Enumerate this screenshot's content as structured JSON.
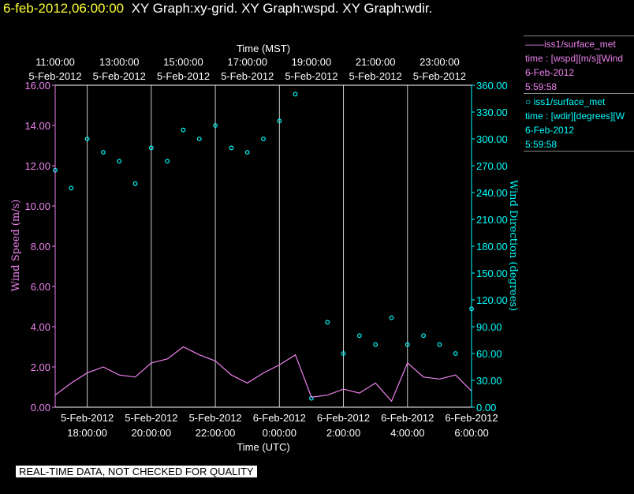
{
  "header": {
    "timestamp": "6-feb-2012,06:00:00",
    "titles": "XY Graph:xy-grid.  XY Graph:wspd.  XY Graph:wdir."
  },
  "legend": {
    "wspd": {
      "name": "——iss1/surface_met",
      "field": "time : [wspd][m/s][Wind",
      "date": "6-Feb-2012",
      "time": "5:59:58"
    },
    "wdir": {
      "name": "○ iss1/surface_met",
      "field": "time : [wdir][degrees][W",
      "date": "6-Feb-2012",
      "time": "5:59:58"
    }
  },
  "footer": {
    "text": "REAL-TIME DATA, NOT CHECKED FOR QUALITY"
  },
  "colors": {
    "wspd": "#ee82ee",
    "wdir": "#00ffff",
    "grid": "#cccccc",
    "text": "#ffffff"
  },
  "chart_data": {
    "type": "scatter",
    "xlabel_top": "Time (MST)",
    "xlabel_bottom": "Time (UTC)",
    "ylabel_left": "Wind Speed (m/s)",
    "ylabel_right": "Wind Direction (degrees)",
    "ylim_left": [
      0,
      16
    ],
    "ylim_right": [
      0,
      360
    ],
    "xlim_hours_utc": [
      17.0,
      30.0
    ],
    "yticks_left": [
      "0.00",
      "2.00",
      "4.00",
      "6.00",
      "8.00",
      "10.00",
      "12.00",
      "14.00",
      "16.00"
    ],
    "yticks_right": [
      "0.00",
      "30.00",
      "60.00",
      "90.00",
      "120.00",
      "150.00",
      "180.00",
      "210.00",
      "240.00",
      "270.00",
      "300.00",
      "330.00",
      "360.00"
    ],
    "xticks_top": [
      {
        "time": "11:00:00",
        "date": "5-Feb-2012"
      },
      {
        "time": "13:00:00",
        "date": "5-Feb-2012"
      },
      {
        "time": "15:00:00",
        "date": "5-Feb-2012"
      },
      {
        "time": "17:00:00",
        "date": "5-Feb-2012"
      },
      {
        "time": "19:00:00",
        "date": "5-Feb-2012"
      },
      {
        "time": "21:00:00",
        "date": "5-Feb-2012"
      },
      {
        "time": "23:00:00",
        "date": "5-Feb-2012"
      }
    ],
    "xticks_bottom": [
      {
        "time": "18:00:00",
        "date": "5-Feb-2012"
      },
      {
        "time": "20:00:00",
        "date": "5-Feb-2012"
      },
      {
        "time": "22:00:00",
        "date": "5-Feb-2012"
      },
      {
        "time": "0:00:00",
        "date": "6-Feb-2012"
      },
      {
        "time": "2:00:00",
        "date": "6-Feb-2012"
      },
      {
        "time": "4:00:00",
        "date": "6-Feb-2012"
      },
      {
        "time": "6:00:00",
        "date": "6-Feb-2012"
      }
    ],
    "series": [
      {
        "name": "iss1/surface_met wspd",
        "kind": "line",
        "x": [
          17.0,
          17.5,
          18.0,
          18.5,
          19.0,
          19.5,
          20.0,
          20.5,
          21.0,
          21.5,
          22.0,
          22.5,
          23.0,
          23.5,
          24.0,
          24.5,
          25.0,
          25.5,
          26.0,
          26.5,
          27.0,
          27.5,
          28.0,
          28.5,
          29.0,
          29.5,
          30.0
        ],
        "y": [
          0.6,
          1.2,
          1.7,
          2.0,
          1.6,
          1.5,
          2.2,
          2.4,
          3.0,
          2.6,
          2.3,
          1.6,
          1.2,
          1.7,
          2.1,
          2.6,
          0.5,
          0.6,
          0.9,
          0.7,
          1.2,
          0.3,
          2.2,
          1.5,
          1.4,
          1.6,
          0.8
        ]
      },
      {
        "name": "iss1/surface_met wdir",
        "kind": "scatter",
        "x": [
          17.0,
          17.5,
          18.0,
          18.5,
          19.0,
          19.5,
          20.0,
          20.5,
          21.0,
          21.5,
          22.0,
          22.5,
          23.0,
          23.5,
          24.0,
          24.5,
          25.0,
          25.5,
          26.0,
          26.5,
          27.0,
          27.5,
          28.0,
          28.5,
          29.0,
          29.5,
          30.0
        ],
        "y": [
          265,
          245,
          300,
          285,
          275,
          250,
          290,
          275,
          310,
          300,
          315,
          290,
          285,
          300,
          320,
          350,
          10,
          95,
          60,
          80,
          70,
          100,
          70,
          80,
          70,
          60,
          110
        ]
      }
    ]
  }
}
